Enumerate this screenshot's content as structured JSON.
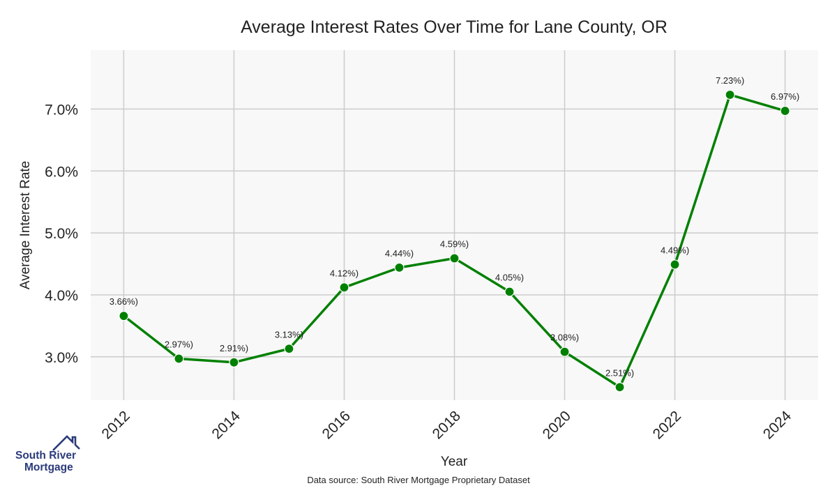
{
  "chart_data": {
    "type": "line",
    "title": "Average Interest Rates Over Time for Lane County, OR",
    "xlabel": "Year",
    "ylabel": "Average Interest Rate",
    "x": [
      2012,
      2013,
      2014,
      2015,
      2016,
      2017,
      2018,
      2019,
      2020,
      2021,
      2022,
      2023,
      2024
    ],
    "values": [
      3.66,
      2.97,
      2.91,
      3.13,
      4.12,
      4.44,
      4.59,
      4.05,
      3.08,
      2.51,
      4.49,
      7.23,
      6.97
    ],
    "data_labels": [
      "3.66%)",
      "2.97%)",
      "2.91%)",
      "3.13%)",
      "4.12%)",
      "4.44%)",
      "4.59%)",
      "4.05%)",
      "3.08%)",
      "2.51%)",
      "4.49%)",
      "7.23%)",
      "6.97%)"
    ],
    "x_ticks": [
      "2012",
      "2014",
      "2016",
      "2018",
      "2020",
      "2022",
      "2024"
    ],
    "x_tick_values": [
      2012,
      2014,
      2016,
      2018,
      2020,
      2022,
      2024
    ],
    "y_ticks": [
      "3.0%",
      "4.0%",
      "5.0%",
      "6.0%",
      "7.0%"
    ],
    "y_tick_values": [
      3.0,
      4.0,
      5.0,
      6.0,
      7.0
    ],
    "xlim": [
      2011.4,
      2024.6
    ],
    "ylim": [
      2.3,
      7.95
    ],
    "grid": true,
    "legend": "none",
    "line_color": "#008000",
    "background_color": "#f8f8f8",
    "grid_color": "#cccccc"
  },
  "footer": {
    "source": "Data source: South River Mortgage Proprietary Dataset"
  },
  "logo": {
    "line1": "South River",
    "line2": "Mortgage",
    "color": "#2b3a7a",
    "icon": "house-roof-icon"
  }
}
